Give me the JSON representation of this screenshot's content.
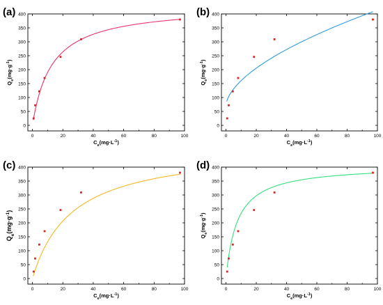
{
  "chart_data": [
    {
      "type": "scatter",
      "panel_label": "(a)",
      "xlabel_main": "C",
      "xlabel_sub": "e",
      "xlabel_unit": "(mg·L",
      "xlabel_sup": "-1",
      "xlabel_close": ")",
      "ylabel_main": "Q",
      "ylabel_sub": "e",
      "ylabel_unit": "(mg·g",
      "ylabel_sup": "-1",
      "ylabel_close": ")",
      "xlim": [
        -3,
        100
      ],
      "ylim": [
        -20,
        400
      ],
      "xticks": [
        0,
        20,
        40,
        60,
        80,
        100
      ],
      "yticks": [
        0,
        50,
        100,
        150,
        200,
        250,
        300,
        350,
        400
      ],
      "points": {
        "x": [
          0.8,
          1.8,
          4.5,
          8.0,
          18.5,
          32.0,
          97.0
        ],
        "y": [
          25,
          72,
          122,
          170,
          246,
          309,
          380
        ]
      },
      "fit_color": "#e8326a",
      "point_color": "#e0241b"
    },
    {
      "type": "scatter",
      "panel_label": "(b)",
      "xlabel_main": "C",
      "xlabel_sub": "e",
      "xlabel_unit": "(mg·L",
      "xlabel_sup": "-1",
      "xlabel_close": ")",
      "ylabel_main": "Q",
      "ylabel_sub": "e",
      "ylabel_unit": "(mg·g",
      "ylabel_sup": "-1",
      "ylabel_close": ")",
      "xlim": [
        -3,
        100
      ],
      "ylim": [
        -20,
        400
      ],
      "xticks": [
        0,
        20,
        40,
        60,
        80,
        100
      ],
      "yticks": [
        0,
        50,
        100,
        150,
        200,
        250,
        300,
        350,
        400
      ],
      "points": {
        "x": [
          0.8,
          1.8,
          4.5,
          8.0,
          18.5,
          32.0,
          97.0
        ],
        "y": [
          25,
          72,
          122,
          170,
          246,
          309,
          380
        ]
      },
      "fit_color": "#2e9be0",
      "point_color": "#e0241b"
    },
    {
      "type": "scatter",
      "panel_label": "(c)",
      "xlabel_main": "C",
      "xlabel_sub": "e",
      "xlabel_unit": "(mg·L",
      "xlabel_sup": "-1",
      "xlabel_close": ")",
      "ylabel_main": "Q",
      "ylabel_sub": "e",
      "ylabel_unit": "(mg·g",
      "ylabel_sup": "-1",
      "ylabel_close": ")",
      "xlim": [
        -3,
        100
      ],
      "ylim": [
        -20,
        400
      ],
      "xticks": [
        0,
        20,
        40,
        60,
        80,
        100
      ],
      "yticks": [
        0,
        50,
        100,
        150,
        200,
        250,
        300,
        350,
        400
      ],
      "points": {
        "x": [
          0.8,
          1.8,
          4.5,
          8.0,
          18.5,
          32.0,
          97.0
        ],
        "y": [
          25,
          72,
          122,
          170,
          246,
          309,
          380
        ]
      },
      "fit_color": "#f5b81e",
      "point_color": "#e0241b"
    },
    {
      "type": "scatter",
      "panel_label": "(d)",
      "xlabel_main": "C",
      "xlabel_sub": "e",
      "xlabel_unit": "(mg·L",
      "xlabel_sup": "-1",
      "xlabel_close": ")",
      "ylabel_main": "Q",
      "ylabel_sub": "e",
      "ylabel_unit": "(mg·g",
      "ylabel_sup": "-1",
      "ylabel_close": ")",
      "xlim": [
        -3,
        100
      ],
      "ylim": [
        -20,
        400
      ],
      "xticks": [
        0,
        20,
        40,
        60,
        80,
        100
      ],
      "yticks": [
        0,
        50,
        100,
        150,
        200,
        250,
        300,
        350,
        400
      ],
      "points": {
        "x": [
          0.8,
          1.8,
          4.5,
          8.0,
          18.5,
          32.0,
          97.0
        ],
        "y": [
          25,
          72,
          122,
          170,
          246,
          309,
          380
        ]
      },
      "fit_color": "#33e07a",
      "point_color": "#e0241b"
    }
  ]
}
